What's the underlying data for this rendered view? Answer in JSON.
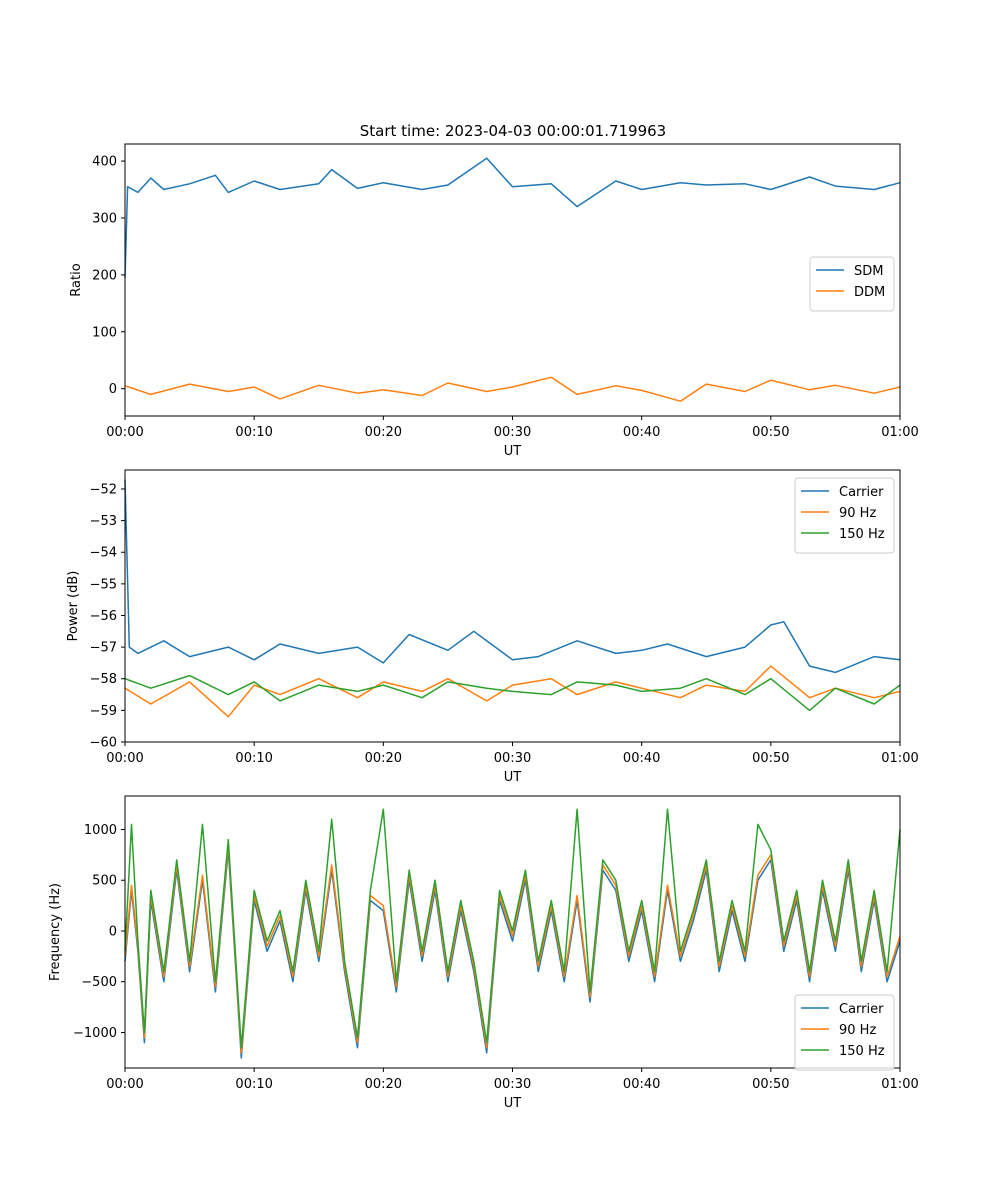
{
  "figure": {
    "title": "Start time: 2023-04-03 00:00:01.719963"
  },
  "chart_data": [
    {
      "type": "line",
      "xlabel": "UT",
      "ylabel": "Ratio",
      "x_ticks": [
        "00:00",
        "00:10",
        "00:20",
        "00:30",
        "00:40",
        "00:50",
        "01:00"
      ],
      "xlim": [
        "00:00",
        "01:00"
      ],
      "y_ticks": [
        0,
        100,
        200,
        300,
        400
      ],
      "ylim": [
        -48,
        430
      ],
      "legend_position": "center-right",
      "series": [
        {
          "name": "SDM",
          "color": "#1f77b4",
          "x": [
            "00:00",
            "00:00:12",
            "00:01",
            "00:02",
            "00:03",
            "00:05",
            "00:07",
            "00:08",
            "00:10",
            "00:12",
            "00:15",
            "00:16",
            "00:18",
            "00:20",
            "00:23",
            "00:25",
            "00:28",
            "00:30",
            "00:33",
            "00:35",
            "00:38",
            "00:40",
            "00:43",
            "00:45",
            "00:48",
            "00:50",
            "00:53",
            "00:55",
            "00:58",
            "01:00"
          ],
          "values": [
            195,
            355,
            345,
            370,
            350,
            360,
            375,
            345,
            365,
            350,
            360,
            385,
            352,
            362,
            350,
            358,
            405,
            355,
            360,
            320,
            365,
            350,
            362,
            358,
            360,
            350,
            372,
            356,
            350,
            362
          ]
        },
        {
          "name": "DDM",
          "color": "#ff7f0e",
          "x": [
            "00:00",
            "00:02",
            "00:05",
            "00:08",
            "00:10",
            "00:12",
            "00:15",
            "00:18",
            "00:20",
            "00:23",
            "00:25",
            "00:28",
            "00:30",
            "00:33",
            "00:35",
            "00:38",
            "00:40",
            "00:43",
            "00:45",
            "00:48",
            "00:50",
            "00:53",
            "00:55",
            "00:58",
            "01:00"
          ],
          "values": [
            5,
            -10,
            8,
            -5,
            3,
            -18,
            6,
            -8,
            -2,
            -12,
            10,
            -5,
            3,
            20,
            -10,
            5,
            -3,
            -22,
            8,
            -5,
            15,
            -2,
            6,
            -8,
            3
          ]
        }
      ]
    },
    {
      "type": "line",
      "xlabel": "UT",
      "ylabel": "Power (dB)",
      "x_ticks": [
        "00:00",
        "00:10",
        "00:20",
        "00:30",
        "00:40",
        "00:50",
        "01:00"
      ],
      "xlim": [
        "00:00",
        "01:00"
      ],
      "y_ticks": [
        -60,
        -59,
        -58,
        -57,
        -56,
        -55,
        -54,
        -53,
        -52
      ],
      "ylim": [
        -60,
        -51.4
      ],
      "legend_position": "top-right",
      "series": [
        {
          "name": "Carrier",
          "color": "#1f77b4",
          "x": [
            "00:00",
            "00:00:20",
            "00:01",
            "00:03",
            "00:05",
            "00:08",
            "00:10",
            "00:12",
            "00:15",
            "00:18",
            "00:20",
            "00:22",
            "00:25",
            "00:27",
            "00:30",
            "00:32",
            "00:35",
            "00:38",
            "00:40",
            "00:42",
            "00:45",
            "00:48",
            "00:50",
            "00:51",
            "00:53",
            "00:55",
            "00:58",
            "01:00"
          ],
          "values": [
            -51.7,
            -57.0,
            -57.2,
            -56.8,
            -57.3,
            -57.0,
            -57.4,
            -56.9,
            -57.2,
            -57.0,
            -57.5,
            -56.6,
            -57.1,
            -56.5,
            -57.4,
            -57.3,
            -56.8,
            -57.2,
            -57.1,
            -56.9,
            -57.3,
            -57.0,
            -56.3,
            -56.2,
            -57.6,
            -57.8,
            -57.3,
            -57.4
          ]
        },
        {
          "name": "90 Hz",
          "color": "#ff7f0e",
          "x": [
            "00:00",
            "00:02",
            "00:05",
            "00:08",
            "00:10",
            "00:12",
            "00:15",
            "00:18",
            "00:20",
            "00:23",
            "00:25",
            "00:28",
            "00:30",
            "00:33",
            "00:35",
            "00:38",
            "00:40",
            "00:43",
            "00:45",
            "00:48",
            "00:50",
            "00:53",
            "00:55",
            "00:58",
            "01:00"
          ],
          "values": [
            -58.3,
            -58.8,
            -58.1,
            -59.2,
            -58.2,
            -58.5,
            -58.0,
            -58.6,
            -58.1,
            -58.4,
            -58.0,
            -58.7,
            -58.2,
            -58.0,
            -58.5,
            -58.1,
            -58.3,
            -58.6,
            -58.2,
            -58.4,
            -57.6,
            -58.6,
            -58.3,
            -58.6,
            -58.4
          ]
        },
        {
          "name": "150 Hz",
          "color": "#2ca02c",
          "x": [
            "00:00",
            "00:02",
            "00:05",
            "00:08",
            "00:10",
            "00:12",
            "00:15",
            "00:18",
            "00:20",
            "00:23",
            "00:25",
            "00:28",
            "00:30",
            "00:33",
            "00:35",
            "00:38",
            "00:40",
            "00:43",
            "00:45",
            "00:48",
            "00:50",
            "00:53",
            "00:55",
            "00:58",
            "01:00"
          ],
          "values": [
            -58.0,
            -58.3,
            -57.9,
            -58.5,
            -58.1,
            -58.7,
            -58.2,
            -58.4,
            -58.2,
            -58.6,
            -58.1,
            -58.3,
            -58.4,
            -58.5,
            -58.1,
            -58.2,
            -58.4,
            -58.3,
            -58.0,
            -58.5,
            -58.0,
            -59.0,
            -58.3,
            -58.8,
            -58.2
          ]
        }
      ]
    },
    {
      "type": "line",
      "xlabel": "UT",
      "ylabel": "Frequency (Hz)",
      "x_ticks": [
        "00:00",
        "00:10",
        "00:20",
        "00:30",
        "00:40",
        "00:50",
        "01:00"
      ],
      "xlim": [
        "00:00",
        "01:00"
      ],
      "y_ticks": [
        -1000,
        -500,
        0,
        500,
        1000
      ],
      "ylim": [
        -1350,
        1330
      ],
      "legend_position": "bottom-right",
      "series": [
        {
          "name": "Carrier",
          "color": "#1f77b4",
          "x": [
            "00:00",
            "00:00:30",
            "00:01",
            "00:01:30",
            "00:02",
            "00:03",
            "00:04",
            "00:05",
            "00:06",
            "00:07",
            "00:08",
            "00:09",
            "00:10",
            "00:11",
            "00:12",
            "00:13",
            "00:14",
            "00:15",
            "00:16",
            "00:17",
            "00:18",
            "00:19",
            "00:20",
            "00:21",
            "00:22",
            "00:23",
            "00:24",
            "00:25",
            "00:26",
            "00:27",
            "00:28",
            "00:29",
            "00:30",
            "00:31",
            "00:32",
            "00:33",
            "00:34",
            "00:35",
            "00:36",
            "00:37",
            "00:38",
            "00:39",
            "00:40",
            "00:41",
            "00:42",
            "00:43",
            "00:44",
            "00:45",
            "00:46",
            "00:47",
            "00:48",
            "00:49",
            "00:50",
            "00:51",
            "00:52",
            "00:53",
            "00:54",
            "00:55",
            "00:56",
            "00:57",
            "00:58",
            "00:59",
            "01:00"
          ],
          "values": [
            -300,
            400,
            -200,
            -1100,
            300,
            -500,
            600,
            -400,
            500,
            -600,
            800,
            -1250,
            300,
            -200,
            100,
            -500,
            400,
            -300,
            600,
            -400,
            -1150,
            300,
            200,
            -600,
            500,
            -300,
            400,
            -500,
            200,
            -400,
            -1200,
            300,
            -100,
            500,
            -400,
            200,
            -500,
            300,
            -700,
            600,
            400,
            -300,
            200,
            -500,
            400,
            -300,
            100,
            600,
            -400,
            200,
            -300,
            500,
            700,
            -200,
            300,
            -500,
            400,
            -200,
            600,
            -400,
            300,
            -500,
            -100
          ]
        },
        {
          "name": "90 Hz",
          "color": "#ff7f0e",
          "x": [
            "00:00",
            "00:00:30",
            "00:01",
            "00:01:30",
            "00:02",
            "00:03",
            "00:04",
            "00:05",
            "00:06",
            "00:07",
            "00:08",
            "00:09",
            "00:10",
            "00:11",
            "00:12",
            "00:13",
            "00:14",
            "00:15",
            "00:16",
            "00:17",
            "00:18",
            "00:19",
            "00:20",
            "00:21",
            "00:22",
            "00:23",
            "00:24",
            "00:25",
            "00:26",
            "00:27",
            "00:28",
            "00:29",
            "00:30",
            "00:31",
            "00:32",
            "00:33",
            "00:34",
            "00:35",
            "00:36",
            "00:37",
            "00:38",
            "00:39",
            "00:40",
            "00:41",
            "00:42",
            "00:43",
            "00:44",
            "00:45",
            "00:46",
            "00:47",
            "00:48",
            "00:49",
            "00:50",
            "00:51",
            "00:52",
            "00:53",
            "00:54",
            "00:55",
            "00:56",
            "00:57",
            "00:58",
            "00:59",
            "01:00"
          ],
          "values": [
            -250,
            450,
            -150,
            -1050,
            350,
            -450,
            650,
            -350,
            550,
            -550,
            850,
            -1200,
            350,
            -150,
            150,
            -450,
            450,
            -250,
            650,
            -350,
            -1100,
            350,
            250,
            -550,
            550,
            -250,
            450,
            -450,
            250,
            -350,
            -1150,
            350,
            -50,
            550,
            -350,
            250,
            -450,
            350,
            -650,
            650,
            450,
            -250,
            250,
            -450,
            450,
            -250,
            150,
            650,
            -350,
            250,
            -250,
            550,
            750,
            -150,
            350,
            -450,
            450,
            -150,
            650,
            -350,
            350,
            -450,
            -50
          ]
        },
        {
          "name": "150 Hz",
          "color": "#2ca02c",
          "x": [
            "00:00",
            "00:00:30",
            "00:01",
            "00:01:30",
            "00:02",
            "00:03",
            "00:04",
            "00:05",
            "00:06",
            "00:07",
            "00:08",
            "00:09",
            "00:10",
            "00:11",
            "00:12",
            "00:13",
            "00:14",
            "00:15",
            "00:16",
            "00:17",
            "00:18",
            "00:19",
            "00:20",
            "00:21",
            "00:22",
            "00:23",
            "00:24",
            "00:25",
            "00:26",
            "00:27",
            "00:28",
            "00:29",
            "00:30",
            "00:31",
            "00:32",
            "00:33",
            "00:34",
            "00:35",
            "00:36",
            "00:37",
            "00:38",
            "00:39",
            "00:40",
            "00:41",
            "00:42",
            "00:43",
            "00:44",
            "00:45",
            "00:46",
            "00:47",
            "00:48",
            "00:49",
            "00:50",
            "00:51",
            "00:52",
            "00:53",
            "00:54",
            "00:55",
            "00:56",
            "00:57",
            "00:58",
            "00:59",
            "01:00"
          ],
          "values": [
            -200,
            1050,
            -100,
            -1000,
            400,
            -400,
            700,
            -300,
            1050,
            -500,
            900,
            -1150,
            400,
            -100,
            200,
            -400,
            500,
            -200,
            1100,
            -300,
            -1050,
            400,
            1200,
            -500,
            600,
            -200,
            500,
            -400,
            300,
            -300,
            -1100,
            400,
            0,
            600,
            -300,
            300,
            -400,
            1200,
            -600,
            700,
            500,
            -200,
            300,
            -400,
            1200,
            -200,
            200,
            700,
            -300,
            300,
            -200,
            1050,
            800,
            -100,
            400,
            -400,
            500,
            -100,
            700,
            -300,
            400,
            -400,
            1000
          ]
        }
      ]
    }
  ]
}
